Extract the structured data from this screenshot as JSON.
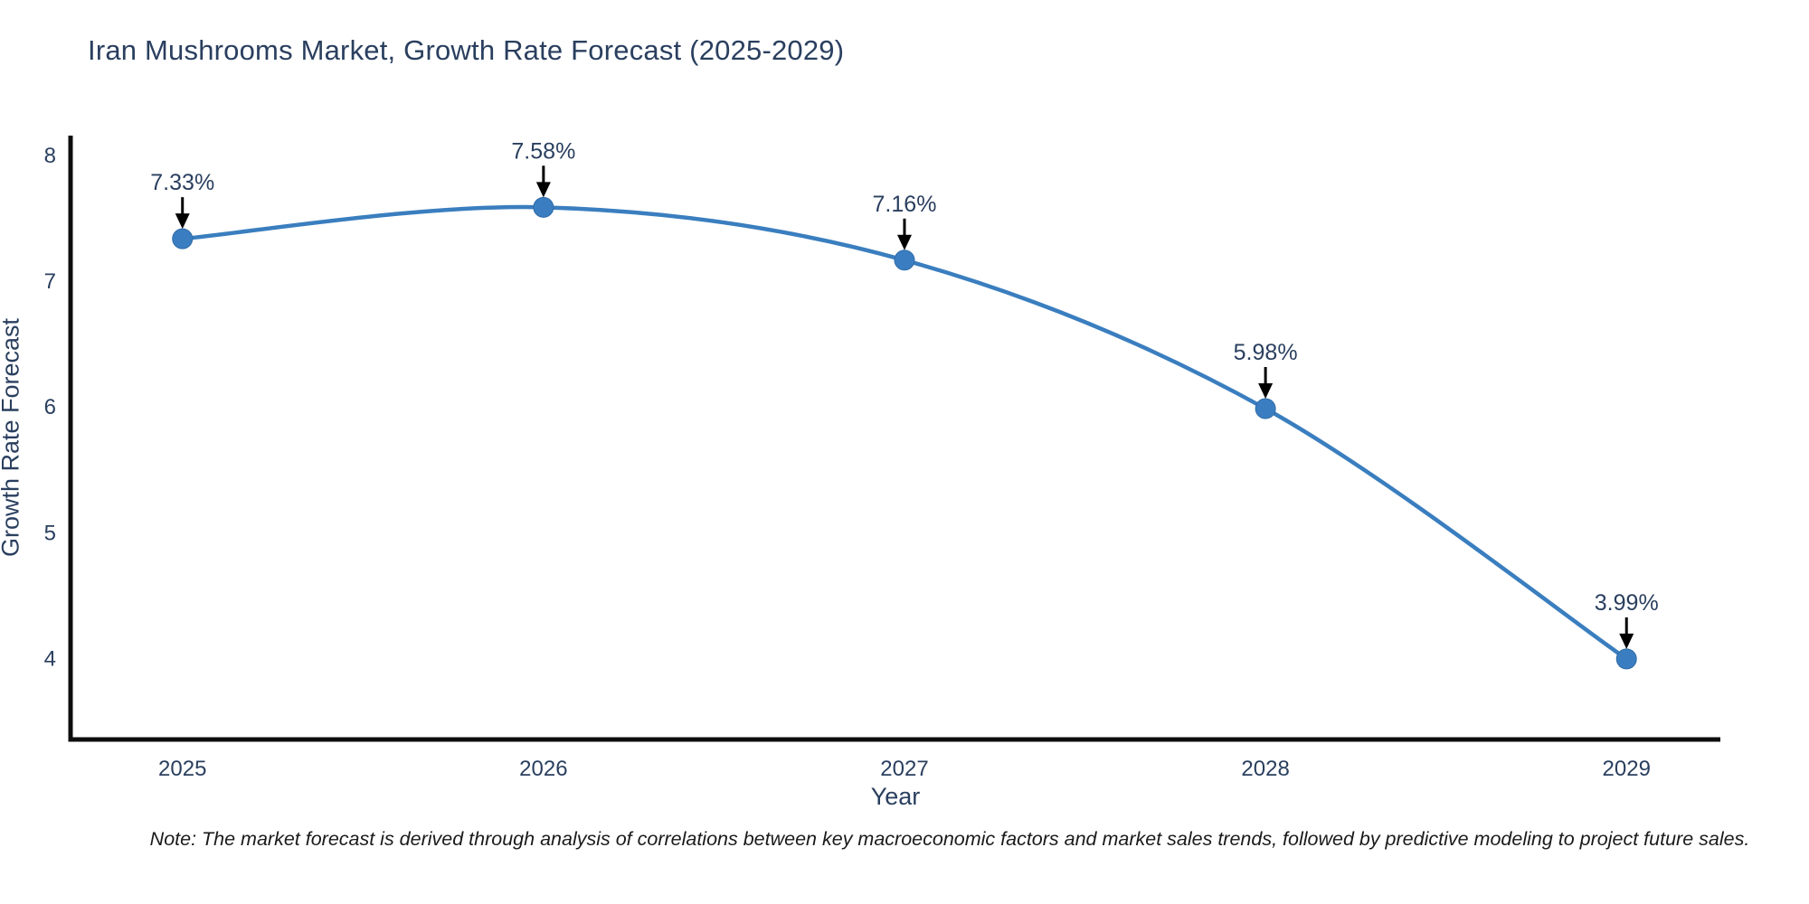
{
  "chart": {
    "note": "Note: The market forecast is derived through analysis of correlations between key macroeconomic factors and market sales trends, followed by predictive modeling to project future sales."
  },
  "chart_data": {
    "type": "line",
    "title": "Iran Mushrooms Market, Growth Rate Forecast (2025-2029)",
    "xlabel": "Year",
    "ylabel": "Growth Rate Forecast",
    "x": [
      2025,
      2026,
      2027,
      2028,
      2029
    ],
    "values": [
      7.33,
      7.58,
      7.16,
      5.98,
      3.99
    ],
    "point_labels": [
      "7.33%",
      "7.58%",
      "7.16%",
      "5.98%",
      "3.99%"
    ],
    "x_tick_labels": [
      "2025",
      "2026",
      "2027",
      "2028",
      "2029"
    ],
    "y_ticks": [
      4,
      5,
      6,
      7,
      8
    ],
    "xlim": [
      2024.69,
      2029.26
    ],
    "ylim": [
      3.35,
      8.15
    ],
    "line_shape": "spline",
    "grid": false,
    "legend": "none",
    "marker_size": 11,
    "colors": {
      "line": "#3a7ebf",
      "marker_fill": "#3a7ec1",
      "marker_edge": "#2f6ba8",
      "axis_line": "#0d0d0d",
      "tick_text": "#2a3f5f",
      "annotation_text": "#2a3f5f",
      "annotation_arrow": "#000000",
      "title_text": "#2a3f5f"
    }
  }
}
